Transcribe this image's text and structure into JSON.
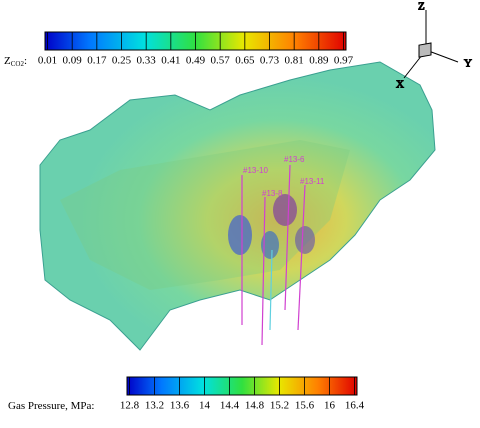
{
  "colorbars": [
    {
      "label": "Z",
      "label_sub": "CO2",
      "label_end": ":",
      "ticks": [
        0.01,
        0.09,
        0.17,
        0.25,
        0.33,
        0.41,
        0.49,
        0.57,
        0.65,
        0.73,
        0.81,
        0.89,
        0.97
      ]
    },
    {
      "label": "Gas Pressure, MPa:",
      "ticks": [
        12.8,
        13.2,
        13.6,
        14,
        14.4,
        14.8,
        15.2,
        15.6,
        16,
        16.4
      ]
    }
  ],
  "wells": [
    "#13-10",
    "#13-6",
    "#13-8",
    "#13-11"
  ],
  "axes": {
    "z": "Z",
    "y": "Y",
    "x": "X"
  }
}
